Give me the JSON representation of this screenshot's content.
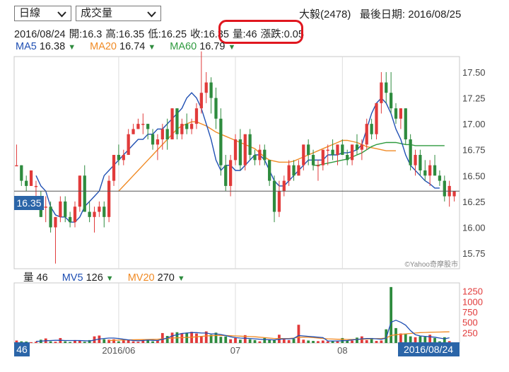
{
  "controls": {
    "period_select": "日線",
    "indicator_select": "成交量"
  },
  "stock": {
    "name_code": "大毅(2478)",
    "last_trade_label": "最後日期: 2016/08/25"
  },
  "ohlc": {
    "date": "2016/08/24",
    "open": "開:16.3",
    "high": "高:16.35",
    "low": "低:16.25",
    "close": "收:16.35",
    "volume": "量:46",
    "change": "漲跌:0.05"
  },
  "ma_legend": [
    {
      "label": "MA5",
      "value": "16.38",
      "color": "#1f4fb3"
    },
    {
      "label": "MA20",
      "value": "16.74",
      "color": "#f08a24"
    },
    {
      "label": "MA60",
      "value": "16.79",
      "color": "#2e9a3e"
    }
  ],
  "vol_legend": [
    {
      "label": "量",
      "value": "46",
      "color": "#222222"
    },
    {
      "label": "MV5",
      "value": "126",
      "color": "#1f4fb3"
    },
    {
      "label": "MV20",
      "value": "270",
      "color": "#f08a24"
    }
  ],
  "watermark": "©Yahoo奇摩股市",
  "current_price_badge": "16.35",
  "current_volume_badge": "46",
  "current_date_badge": "2016/08/24",
  "colors": {
    "up": "#e13a3a",
    "down": "#2e8b3e",
    "ma5": "#1f4fb3",
    "ma20": "#f08a24",
    "ma60": "#2e9a3e",
    "badge": "#2b65a8"
  },
  "chart_data": [
    {
      "type": "candlestick",
      "ylim": [
        15.6,
        17.65
      ],
      "yticks": [
        "17.50",
        "17.25",
        "17.00",
        "16.75",
        "16.50",
        "16.25",
        "16.00",
        "15.75"
      ],
      "xticks": [
        "2016/06",
        "07",
        "08"
      ],
      "reference_price": 16.35,
      "candles_ohlc": [
        [
          16.6,
          16.8,
          16.6,
          16.6
        ],
        [
          16.6,
          16.6,
          16.4,
          16.45
        ],
        [
          16.45,
          16.5,
          16.35,
          16.4
        ],
        [
          16.4,
          16.55,
          16.4,
          16.55
        ],
        [
          16.4,
          16.45,
          16.3,
          16.4
        ],
        [
          16.3,
          16.35,
          16.1,
          16.1
        ],
        [
          16.2,
          16.3,
          16.05,
          16.2
        ],
        [
          16.2,
          16.25,
          15.95,
          16.0
        ],
        [
          16.0,
          16.1,
          15.65,
          16.1
        ],
        [
          16.1,
          16.3,
          16.05,
          16.25
        ],
        [
          16.25,
          16.3,
          16.05,
          16.1
        ],
        [
          16.1,
          16.15,
          16.0,
          16.05
        ],
        [
          16.05,
          16.25,
          16.0,
          16.2
        ],
        [
          16.2,
          16.5,
          16.15,
          16.5
        ],
        [
          16.5,
          16.6,
          16.15,
          16.15
        ],
        [
          16.15,
          16.25,
          16.05,
          16.1
        ],
        [
          16.1,
          16.2,
          15.95,
          16.15
        ],
        [
          16.15,
          16.25,
          16.1,
          16.2
        ],
        [
          16.2,
          16.25,
          16.0,
          16.1
        ],
        [
          16.1,
          16.5,
          16.05,
          16.45
        ],
        [
          16.45,
          16.7,
          16.4,
          16.7
        ],
        [
          16.7,
          16.8,
          16.6,
          16.65
        ],
        [
          16.65,
          16.75,
          16.6,
          16.7
        ],
        [
          16.7,
          16.95,
          16.7,
          16.9
        ],
        [
          16.9,
          17.0,
          16.9,
          16.95
        ],
        [
          16.95,
          17.05,
          16.95,
          17.0
        ],
        [
          17.0,
          17.1,
          16.9,
          17.0
        ],
        [
          17.0,
          17.0,
          16.85,
          16.95
        ],
        [
          16.9,
          16.95,
          16.75,
          16.8
        ],
        [
          16.8,
          16.9,
          16.65,
          16.85
        ],
        [
          16.85,
          17.0,
          16.75,
          16.95
        ],
        [
          16.95,
          17.05,
          16.75,
          16.85
        ],
        [
          16.85,
          17.15,
          16.85,
          17.15
        ],
        [
          17.15,
          17.15,
          16.85,
          16.9
        ],
        [
          16.9,
          17.05,
          16.85,
          17.0
        ],
        [
          17.0,
          17.1,
          16.9,
          16.95
        ],
        [
          16.95,
          17.05,
          16.9,
          17.0
        ],
        [
          17.0,
          17.2,
          16.95,
          17.15
        ],
        [
          17.15,
          17.7,
          17.1,
          17.3
        ],
        [
          17.3,
          17.5,
          17.2,
          17.4
        ],
        [
          17.4,
          17.45,
          17.1,
          17.25
        ],
        [
          17.25,
          17.35,
          16.95,
          17.05
        ],
        [
          17.05,
          17.15,
          16.5,
          16.6
        ],
        [
          16.6,
          16.7,
          16.35,
          16.4
        ],
        [
          16.4,
          16.7,
          16.3,
          16.65
        ],
        [
          16.65,
          16.9,
          16.6,
          16.85
        ],
        [
          16.85,
          16.95,
          16.55,
          16.6
        ],
        [
          16.6,
          16.9,
          16.55,
          16.9
        ],
        [
          16.9,
          16.95,
          16.65,
          16.7
        ],
        [
          16.7,
          16.75,
          16.6,
          16.65
        ],
        [
          16.65,
          16.8,
          16.6,
          16.75
        ],
        [
          16.75,
          16.8,
          16.6,
          16.65
        ],
        [
          16.65,
          16.65,
          16.4,
          16.45
        ],
        [
          16.45,
          16.5,
          16.05,
          16.15
        ],
        [
          16.15,
          16.45,
          16.1,
          16.35
        ],
        [
          16.35,
          16.5,
          16.3,
          16.45
        ],
        [
          16.45,
          16.65,
          16.4,
          16.6
        ],
        [
          16.6,
          16.65,
          16.45,
          16.5
        ],
        [
          16.5,
          16.65,
          16.5,
          16.6
        ],
        [
          16.6,
          16.8,
          16.55,
          16.8
        ],
        [
          16.8,
          16.85,
          16.6,
          16.7
        ],
        [
          16.7,
          16.75,
          16.55,
          16.6
        ],
        [
          16.6,
          16.65,
          16.45,
          16.6
        ],
        [
          16.6,
          16.75,
          16.55,
          16.75
        ],
        [
          16.75,
          16.8,
          16.6,
          16.75
        ],
        [
          16.75,
          16.85,
          16.65,
          16.7
        ],
        [
          16.7,
          16.8,
          16.6,
          16.8
        ],
        [
          16.8,
          16.85,
          16.7,
          16.7
        ],
        [
          16.7,
          16.75,
          16.6,
          16.65
        ],
        [
          16.65,
          16.8,
          16.6,
          16.8
        ],
        [
          16.8,
          16.9,
          16.7,
          16.75
        ],
        [
          16.75,
          16.85,
          16.65,
          16.8
        ],
        [
          16.8,
          17.05,
          16.75,
          17.0
        ],
        [
          17.0,
          17.05,
          16.85,
          16.9
        ],
        [
          16.9,
          17.2,
          16.85,
          17.2
        ],
        [
          17.2,
          17.5,
          17.1,
          17.4
        ],
        [
          17.4,
          17.5,
          17.2,
          17.3
        ],
        [
          17.3,
          17.5,
          17.1,
          17.15
        ],
        [
          17.15,
          17.2,
          17.0,
          17.05
        ],
        [
          17.05,
          17.15,
          16.95,
          17.15
        ],
        [
          17.15,
          17.15,
          16.8,
          16.85
        ],
        [
          16.85,
          16.9,
          16.55,
          16.6
        ],
        [
          16.6,
          16.75,
          16.5,
          16.7
        ],
        [
          16.7,
          16.75,
          16.5,
          16.55
        ],
        [
          16.55,
          16.65,
          16.45,
          16.5
        ],
        [
          16.5,
          16.65,
          16.4,
          16.6
        ],
        [
          16.6,
          16.7,
          16.5,
          16.5
        ],
        [
          16.5,
          16.55,
          16.4,
          16.45
        ],
        [
          16.45,
          16.5,
          16.25,
          16.3
        ],
        [
          16.3,
          16.45,
          16.2,
          16.4
        ],
        [
          16.3,
          16.35,
          16.25,
          16.35
        ]
      ],
      "ma5": [
        null,
        null,
        null,
        null,
        16.5,
        16.4,
        16.35,
        16.2,
        16.12,
        16.1,
        16.1,
        16.05,
        16.05,
        16.1,
        16.2,
        16.25,
        16.3,
        16.35,
        16.5,
        16.55,
        16.6,
        16.65,
        16.7,
        16.75,
        16.8,
        16.85,
        16.85,
        16.9,
        16.9,
        16.95,
        16.95,
        17.0,
        17.05,
        17.1,
        17.15,
        17.25,
        17.3,
        17.25,
        17.15,
        17.0,
        16.85,
        16.65,
        16.55,
        16.6,
        16.6,
        16.55,
        16.55,
        16.6,
        16.65,
        16.7,
        16.7,
        16.65,
        16.55,
        16.45,
        16.4,
        16.4,
        16.45,
        16.5,
        16.55,
        16.6,
        16.65,
        16.65,
        16.65,
        16.65,
        16.7,
        16.7,
        16.7,
        16.72,
        16.72,
        16.73,
        16.75,
        16.8,
        16.95,
        17.1,
        17.2,
        17.25,
        17.2,
        17.1,
        16.95,
        16.85,
        16.7,
        16.6,
        16.55,
        16.5,
        16.45,
        16.42,
        16.38,
        16.38
      ],
      "ma20": [
        null,
        null,
        null,
        null,
        null,
        null,
        null,
        null,
        null,
        null,
        null,
        null,
        null,
        null,
        null,
        null,
        null,
        null,
        null,
        null,
        null,
        16.35,
        16.4,
        16.45,
        16.5,
        16.55,
        16.6,
        16.65,
        16.7,
        16.75,
        16.8,
        16.85,
        16.9,
        16.95,
        16.98,
        17.0,
        17.02,
        17.02,
        17.0,
        16.98,
        16.95,
        16.92,
        16.9,
        16.88,
        16.86,
        16.84,
        16.82,
        16.8,
        16.78,
        16.76,
        16.72,
        16.68,
        16.65,
        16.64,
        16.63,
        16.63,
        16.63,
        16.64,
        16.66,
        16.68,
        16.7,
        16.72,
        16.74,
        16.76,
        16.78,
        16.8,
        16.82,
        16.84,
        16.84,
        16.83,
        16.82,
        16.8,
        16.78,
        16.77,
        16.76,
        16.75,
        16.74,
        16.74,
        16.74
      ],
      "ma60": [
        null,
        null,
        null,
        null,
        null,
        null,
        null,
        null,
        null,
        null,
        null,
        null,
        null,
        null,
        null,
        null,
        null,
        null,
        null,
        null,
        null,
        null,
        null,
        null,
        null,
        null,
        null,
        null,
        null,
        null,
        null,
        null,
        null,
        null,
        null,
        null,
        null,
        null,
        null,
        null,
        null,
        null,
        null,
        null,
        null,
        null,
        null,
        null,
        null,
        null,
        null,
        null,
        null,
        null,
        null,
        null,
        null,
        null,
        null,
        null,
        null,
        16.6,
        16.6,
        16.61,
        16.62,
        16.63,
        16.64,
        16.65,
        16.66,
        16.68,
        16.7,
        16.72,
        16.75,
        16.78,
        16.8,
        16.81,
        16.82,
        16.82,
        16.82,
        16.81,
        16.8,
        16.8,
        16.79,
        16.79,
        16.79,
        16.79,
        16.79,
        16.79,
        16.79
      ]
    },
    {
      "type": "bar",
      "ylim": [
        0,
        1450
      ],
      "yticks": [
        "1250",
        "1000",
        "750",
        "500",
        "250"
      ],
      "volumes": [
        60,
        40,
        35,
        20,
        30,
        80,
        110,
        40,
        30,
        120,
        40,
        25,
        70,
        60,
        30,
        70,
        160,
        180,
        90,
        80,
        90,
        40,
        60,
        80,
        40,
        30,
        90,
        60,
        40,
        70,
        240,
        170,
        250,
        260,
        240,
        250,
        270,
        230,
        170,
        280,
        200,
        250,
        150,
        160,
        90,
        120,
        80,
        190,
        90,
        70,
        40,
        120,
        70,
        80,
        200,
        90,
        70,
        100,
        440,
        80,
        60,
        50,
        45,
        60,
        40,
        50,
        40,
        120,
        60,
        60,
        130,
        160,
        70,
        120,
        50,
        60,
        330,
        1350,
        360,
        230,
        230,
        160,
        140,
        160,
        150,
        200,
        120,
        40,
        140,
        46
      ],
      "mv5": [
        null,
        null,
        null,
        null,
        40,
        45,
        55,
        60,
        65,
        65,
        60,
        60,
        60,
        60,
        55,
        50,
        70,
        95,
        110,
        120,
        120,
        110,
        90,
        75,
        60,
        55,
        60,
        70,
        65,
        60,
        90,
        120,
        170,
        200,
        230,
        240,
        250,
        250,
        240,
        240,
        220,
        220,
        205,
        180,
        150,
        130,
        120,
        115,
        110,
        100,
        90,
        85,
        80,
        75,
        90,
        100,
        100,
        110,
        180,
        170,
        160,
        150,
        140,
        130,
        50,
        50,
        50,
        55,
        60,
        75,
        85,
        100,
        110,
        110,
        100,
        90,
        120,
        500,
        550,
        500,
        430,
        300,
        200,
        170,
        160,
        150,
        140,
        120,
        100,
        126
      ],
      "mv20": [
        null,
        null,
        null,
        null,
        null,
        null,
        null,
        null,
        null,
        null,
        null,
        null,
        null,
        null,
        null,
        null,
        null,
        null,
        null,
        60,
        65,
        70,
        72,
        75,
        78,
        80,
        82,
        85,
        88,
        90,
        100,
        110,
        120,
        125,
        130,
        135,
        140,
        150,
        160,
        170,
        175,
        180,
        182,
        180,
        175,
        170,
        165,
        160,
        155,
        150,
        140,
        130,
        120,
        110,
        110,
        110,
        110,
        120,
        140,
        140,
        140,
        130,
        120,
        110,
        100,
        95,
        90,
        90,
        85,
        85,
        88,
        90,
        95,
        100,
        105,
        110,
        120,
        180,
        200,
        210,
        220,
        230,
        240,
        250,
        255,
        260,
        262,
        265,
        268,
        270
      ]
    }
  ]
}
